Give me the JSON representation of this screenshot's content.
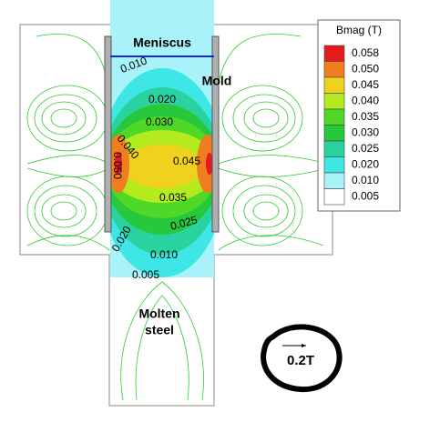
{
  "labels": {
    "meniscus": "Meniscus",
    "mold": "Mold",
    "molten": "Molten",
    "steel": "steel"
  },
  "contour_labels": [
    "0.010",
    "0.020",
    "0.030",
    "0.040",
    "0.050",
    "0.045",
    "0.035",
    "0.025",
    "0.020",
    "0.010",
    "0.005"
  ],
  "legend": {
    "title": "Bmag (T)",
    "entries": [
      {
        "label": "0.058",
        "color": "#e41a1c"
      },
      {
        "label": "0.050",
        "color": "#f07d1e"
      },
      {
        "label": "0.045",
        "color": "#f0d21e"
      },
      {
        "label": "0.040",
        "color": "#b4eb1e"
      },
      {
        "label": "0.035",
        "color": "#50d828"
      },
      {
        "label": "0.030",
        "color": "#28c83c"
      },
      {
        "label": "0.025",
        "color": "#2ad2a0"
      },
      {
        "label": "0.020",
        "color": "#3ee6e6"
      },
      {
        "label": "0.010",
        "color": "#a8f2fa"
      },
      {
        "label": "0.005",
        "color": "#ffffff"
      }
    ]
  },
  "scale": {
    "label": "0.2T"
  }
}
